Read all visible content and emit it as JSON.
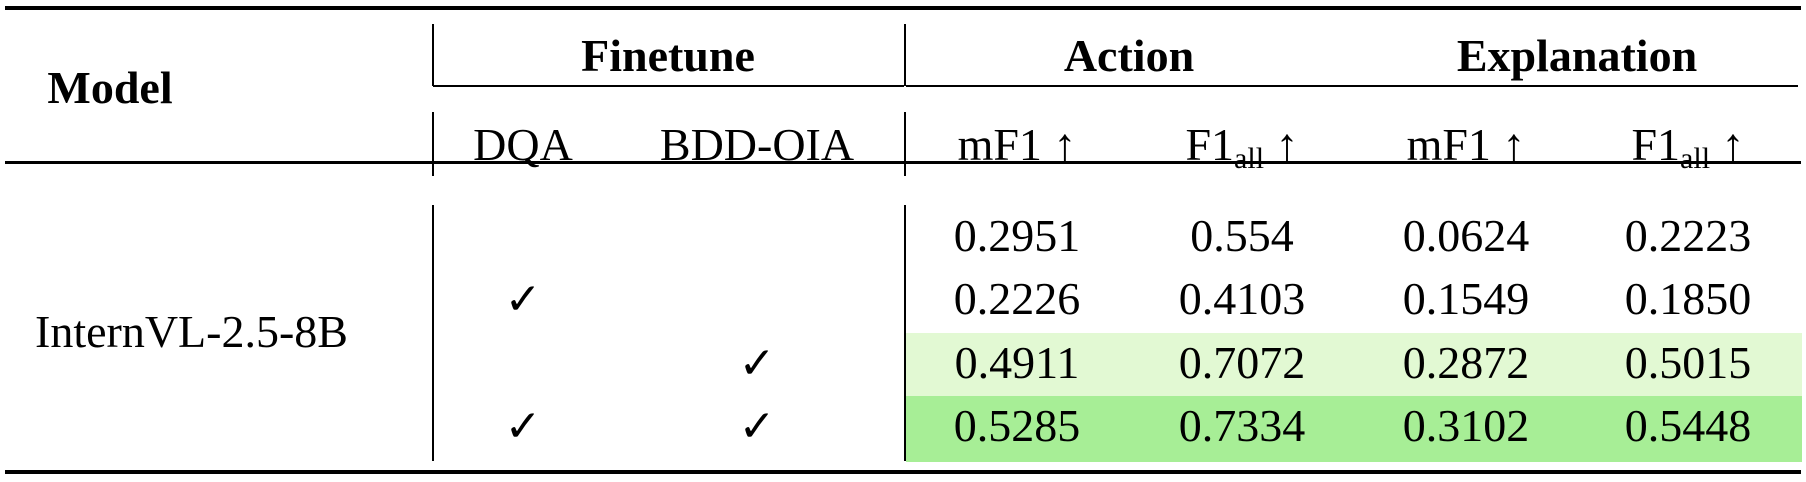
{
  "header": {
    "model": "Model",
    "finetune": "Finetune",
    "action": "Action",
    "explanation": "Explanation"
  },
  "subheader": {
    "dqa": "DQA",
    "bdd": "BDD-OIA",
    "mf1": "mF1 ↑",
    "f1_base": "F1",
    "f1_sub": "all",
    "arrow": " ↑"
  },
  "model_name": "InternVL-2.5-8B",
  "check_mark": "✓",
  "highlight_colors": {
    "row3": "#e2f9d3",
    "row4": "#a7ee96"
  },
  "rows": [
    {
      "dqa": false,
      "bdd": false,
      "action_mf1": "0.2951",
      "action_f1all": "0.554",
      "expl_mf1": "0.0624",
      "expl_f1all": "0.2223"
    },
    {
      "dqa": true,
      "bdd": false,
      "action_mf1": "0.2226",
      "action_f1all": "0.4103",
      "expl_mf1": "0.1549",
      "expl_f1all": "0.1850"
    },
    {
      "dqa": false,
      "bdd": true,
      "action_mf1": "0.4911",
      "action_f1all": "0.7072",
      "expl_mf1": "0.2872",
      "expl_f1all": "0.5015"
    },
    {
      "dqa": true,
      "bdd": true,
      "action_mf1": "0.5285",
      "action_f1all": "0.7334",
      "expl_mf1": "0.3102",
      "expl_f1all": "0.5448"
    }
  ]
}
